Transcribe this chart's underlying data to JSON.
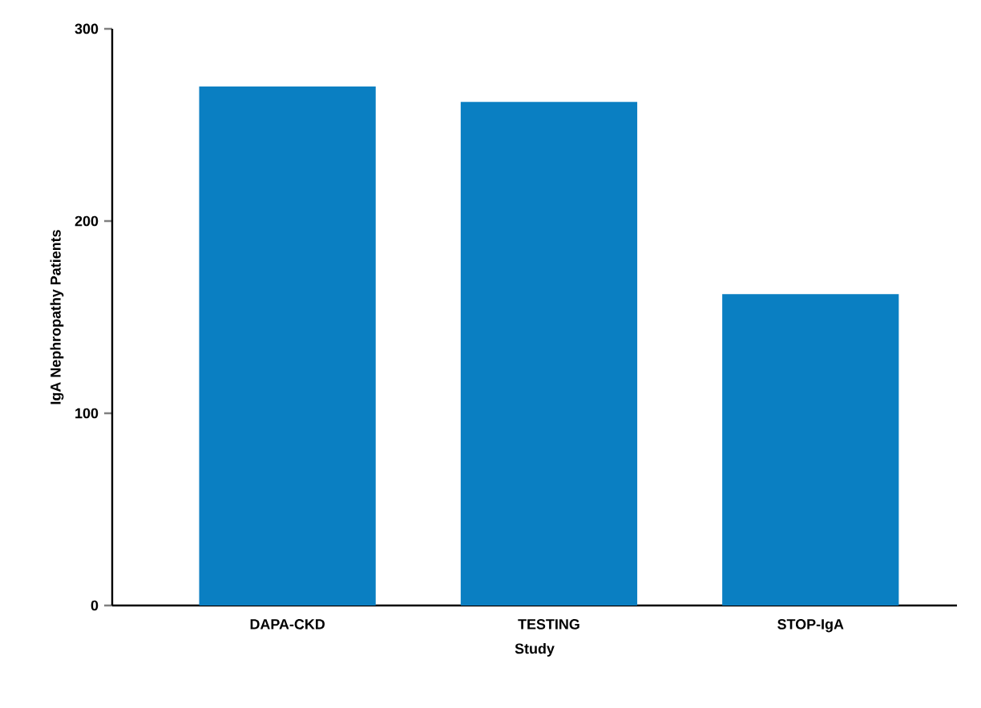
{
  "chart_data": {
    "type": "bar",
    "xlabel": "Study",
    "ylabel": "IgA Nephropathy Patients",
    "categories": [
      "DAPA-CKD",
      "TESTING",
      "STOP-IgA"
    ],
    "values": [
      270,
      262,
      162
    ],
    "color": "#0a7fc2",
    "ylim": [
      0,
      300
    ],
    "yticks": [
      0,
      100,
      200,
      300
    ]
  }
}
